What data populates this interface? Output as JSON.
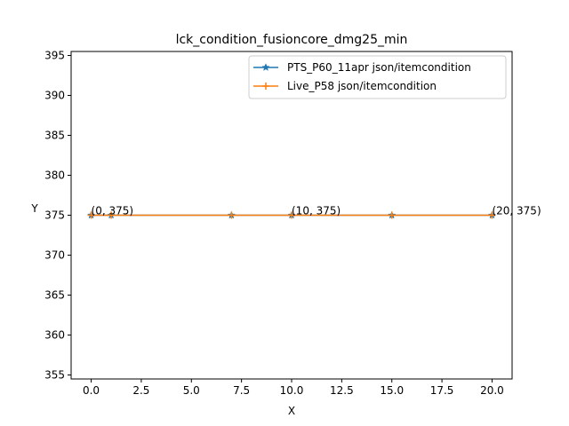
{
  "chart_data": {
    "type": "line",
    "title": "lck_condition_fusioncore_dmg25_min",
    "xlabel": "X",
    "ylabel": "Y",
    "xlim": [
      -1,
      21
    ],
    "ylim": [
      354.5,
      395.5
    ],
    "x_ticks": [
      0,
      2.5,
      5,
      7.5,
      10,
      12.5,
      15,
      17.5,
      20
    ],
    "x_tick_labels": [
      "0.0",
      "2.5",
      "5.0",
      "7.5",
      "10.0",
      "12.5",
      "15.0",
      "17.5",
      "20.0"
    ],
    "y_ticks": [
      355,
      360,
      365,
      370,
      375,
      380,
      385,
      390,
      395
    ],
    "y_tick_labels": [
      "355",
      "360",
      "365",
      "370",
      "375",
      "380",
      "385",
      "390",
      "395"
    ],
    "grid": false,
    "legend_position": "top-right",
    "series": [
      {
        "name": "PTS_P60_11apr json/itemcondition",
        "color": "#1f77b4",
        "marker": "star",
        "x": [
          0,
          1,
          7,
          10,
          15,
          20
        ],
        "y": [
          375,
          375,
          375,
          375,
          375,
          375
        ]
      },
      {
        "name": "Live_P58 json/itemcondition",
        "color": "#ff7f0e",
        "marker": "plus",
        "x": [
          0,
          1,
          7,
          10,
          15,
          20
        ],
        "y": [
          375,
          375,
          375,
          375,
          375,
          375
        ]
      }
    ],
    "annotations": [
      {
        "text": "(0, 375)",
        "x": 0,
        "y": 375
      },
      {
        "text": "(10, 375)",
        "x": 10,
        "y": 375
      },
      {
        "text": "(20, 375)",
        "x": 20,
        "y": 375
      }
    ]
  }
}
